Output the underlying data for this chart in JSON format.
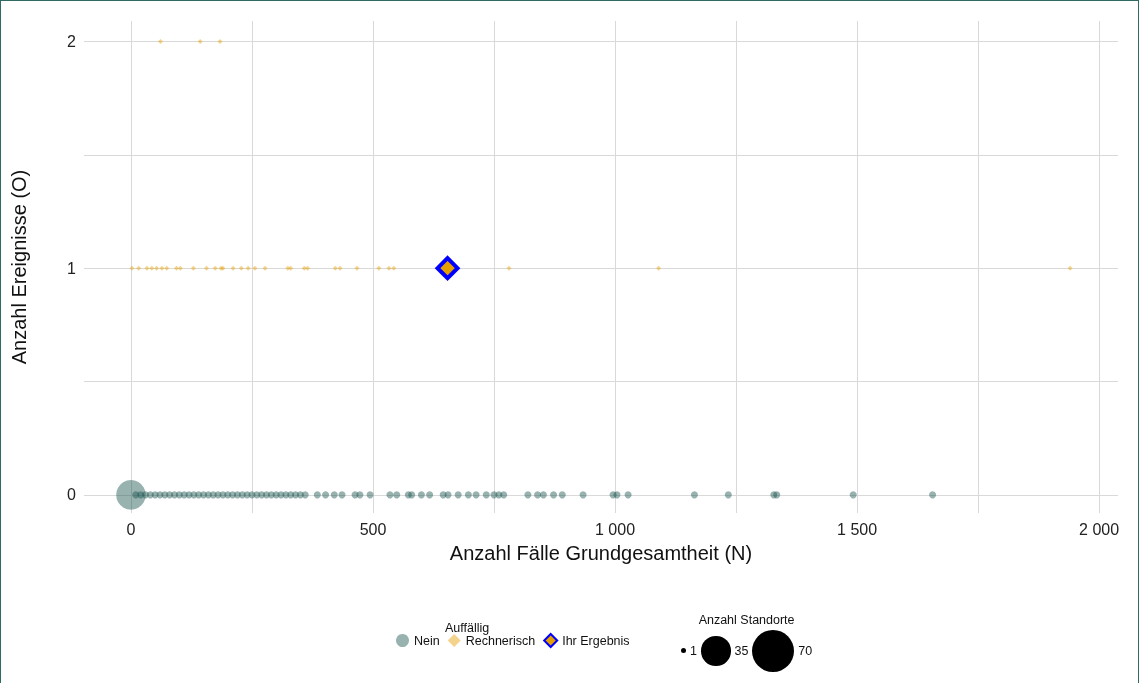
{
  "chart_data": {
    "type": "bubble",
    "xlabel": "Anzahl Fälle Grundgesamtheit (N)",
    "ylabel": "Anzahl Ereignisse (O)",
    "legend_title": "Auffällig",
    "legend": "bottom",
    "grid": true,
    "size_legend": [
      1,
      35,
      70
    ],
    "annotations": [
      "Anzahl Standorte"
    ],
    "xlim": [
      -97,
      2039
    ],
    "ylim": [
      -0.08,
      2.09
    ],
    "xticks": [
      0,
      {
        "value": 250,
        "label": null
      },
      500,
      {
        "value": 750,
        "label": null
      },
      {
        "value": 1000,
        "label": "1 000"
      },
      {
        "value": 1250,
        "label": null
      },
      {
        "value": 1500,
        "label": "1 500"
      },
      {
        "value": 1750,
        "label": null
      },
      {
        "value": 2000,
        "label": "2 000"
      }
    ],
    "yticks": [
      0,
      {
        "value": 0.5,
        "label": null
      },
      1,
      {
        "value": 1.5,
        "label": null
      },
      2
    ],
    "series": [
      {
        "name": "Nein",
        "type": "bubble",
        "color": "#1a5450",
        "marker": "circle",
        "x": [
          0,
          10,
          20,
          30,
          40,
          50,
          60,
          70,
          80,
          90,
          100,
          110,
          120,
          130,
          140,
          150,
          160,
          170,
          180,
          190,
          200,
          210,
          220,
          230,
          240,
          250,
          260,
          270,
          280,
          290,
          300,
          310,
          320,
          330,
          340,
          350,
          360,
          385,
          402,
          420,
          436,
          463,
          473,
          494,
          535,
          549,
          573,
          580,
          600,
          617,
          645,
          655,
          676,
          697,
          713,
          734,
          750,
          760,
          770,
          820,
          840,
          852,
          873,
          891,
          934,
          996,
          1004,
          1027,
          1164,
          1234,
          1328,
          1334,
          1492,
          1656
        ],
        "values": [
          0,
          0,
          0,
          0,
          0,
          0,
          0,
          0,
          0,
          0,
          0,
          0,
          0,
          0,
          0,
          0,
          0,
          0,
          0,
          0,
          0,
          0,
          0,
          0,
          0,
          0,
          0,
          0,
          0,
          0,
          0,
          0,
          0,
          0,
          0,
          0,
          0,
          0,
          0,
          0,
          0,
          0,
          0,
          0,
          0,
          0,
          0,
          0,
          0,
          0,
          0,
          0,
          0,
          0,
          0,
          0,
          0,
          0,
          0,
          0,
          0,
          0,
          0,
          0,
          0,
          0,
          0,
          0,
          0,
          0,
          0,
          0,
          0,
          0
        ],
        "sizes": [
          35,
          2,
          2,
          2,
          2,
          2,
          2,
          2,
          2,
          2,
          2,
          2,
          2,
          2,
          2,
          2,
          2,
          2,
          2,
          2,
          2,
          2,
          2,
          2,
          2,
          2,
          2,
          2,
          2,
          2,
          2,
          2,
          2,
          2,
          2,
          2,
          2,
          2,
          2,
          2,
          2,
          2,
          2,
          2,
          2,
          2,
          2,
          2,
          2,
          2,
          2,
          2,
          2,
          2,
          2,
          2,
          2,
          2,
          2,
          2,
          2,
          2,
          2,
          2,
          2,
          2,
          2,
          2,
          2,
          2,
          2,
          2,
          2,
          2
        ]
      },
      {
        "name": "Rechnerisch",
        "type": "bubble",
        "color": "#e69f00",
        "marker": "diamond",
        "x": [
          2,
          16,
          33,
          43,
          53,
          64,
          74,
          94,
          102,
          129,
          156,
          174,
          186,
          190,
          211,
          228,
          242,
          256,
          277,
          324,
          330,
          358,
          365,
          422,
          432,
          467,
          512,
          533,
          543,
          781,
          1090,
          1940,
          61,
          143,
          184
        ],
        "values": [
          1,
          1,
          1,
          1,
          1,
          1,
          1,
          1,
          1,
          1,
          1,
          1,
          1,
          1,
          1,
          1,
          1,
          1,
          1,
          1,
          1,
          1,
          1,
          1,
          1,
          1,
          1,
          1,
          1,
          1,
          1,
          1,
          2,
          2,
          2
        ],
        "sizes": [
          1,
          1,
          1,
          1,
          1,
          1,
          1,
          1,
          1,
          1,
          1,
          1,
          1,
          1,
          1,
          1,
          1,
          1,
          1,
          1,
          1,
          1,
          1,
          1,
          1,
          1,
          1,
          1,
          1,
          1,
          1,
          1,
          1,
          1,
          1
        ]
      },
      {
        "name": "Ihr Ergebnis",
        "type": "scatter",
        "color": "#0000ff",
        "marker": "diamond",
        "x": [
          654
        ],
        "values": [
          1
        ]
      }
    ]
  }
}
